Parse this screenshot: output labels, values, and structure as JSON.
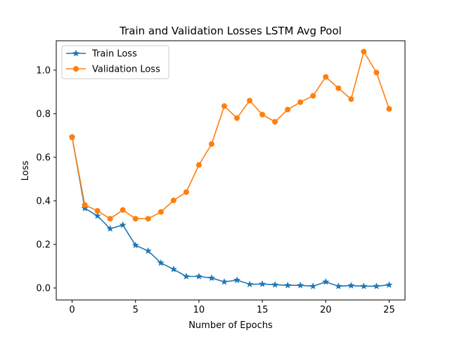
{
  "chart_data": {
    "type": "line",
    "title": "Train and Validation Losses LSTM Avg Pool",
    "xlabel": "Number of Epochs",
    "ylabel": "Loss",
    "xlim": [
      -1.25,
      26.25
    ],
    "ylim": [
      -0.055,
      1.135
    ],
    "xticks": [
      0,
      5,
      10,
      15,
      20,
      25
    ],
    "xtick_labels": [
      "0",
      "5",
      "10",
      "15",
      "20",
      "25"
    ],
    "yticks": [
      0.0,
      0.2,
      0.4,
      0.6,
      0.8,
      1.0
    ],
    "ytick_labels": [
      "0.0",
      "0.2",
      "0.4",
      "0.6",
      "0.8",
      "1.0"
    ],
    "grid": false,
    "legend_position": "top-left",
    "x": [
      0,
      1,
      2,
      3,
      4,
      5,
      6,
      7,
      8,
      9,
      10,
      11,
      12,
      13,
      14,
      15,
      16,
      17,
      18,
      19,
      20,
      21,
      22,
      23,
      24,
      25
    ],
    "series": [
      {
        "name": "Train Loss",
        "color": "#1f77b4",
        "marker": "star",
        "values": [
          0.693,
          0.366,
          0.331,
          0.272,
          0.289,
          0.196,
          0.17,
          0.115,
          0.086,
          0.053,
          0.053,
          0.046,
          0.028,
          0.036,
          0.017,
          0.018,
          0.015,
          0.012,
          0.012,
          0.008,
          0.028,
          0.008,
          0.011,
          0.008,
          0.008,
          0.014
        ]
      },
      {
        "name": "Validation Loss",
        "color": "#ff7f0e",
        "marker": "circle",
        "values": [
          0.692,
          0.381,
          0.354,
          0.318,
          0.358,
          0.318,
          0.318,
          0.349,
          0.402,
          0.44,
          0.565,
          0.661,
          0.835,
          0.78,
          0.86,
          0.796,
          0.763,
          0.819,
          0.853,
          0.882,
          0.969,
          0.917,
          0.867,
          1.085,
          0.989,
          0.822
        ]
      }
    ]
  }
}
